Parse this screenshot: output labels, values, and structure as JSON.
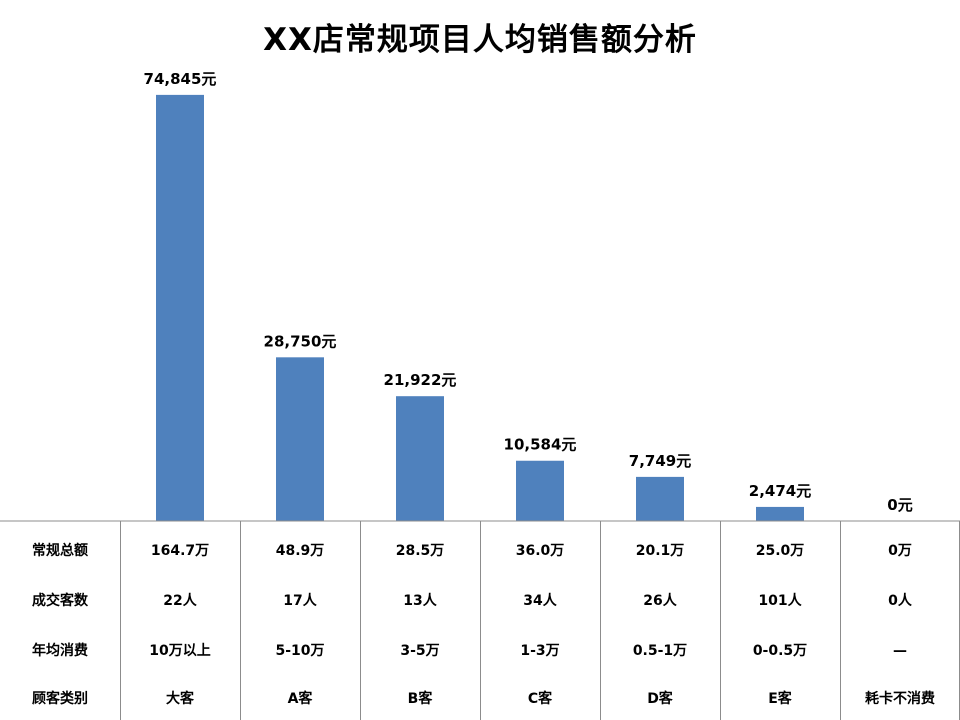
{
  "title": "XX店常规项目人均销售额分析",
  "chart_data": {
    "type": "bar",
    "title": "XX店常规项目人均销售额分析",
    "categories": [
      "大客",
      "A客",
      "B客",
      "C客",
      "D客",
      "E客",
      "耗卡不消费"
    ],
    "values": [
      74845,
      28750,
      21922,
      10584,
      7749,
      2474,
      0
    ],
    "value_labels": [
      "74,845元",
      "28,750元",
      "21,922元",
      "10,584元",
      "7,749元",
      "2,474元",
      "0元"
    ],
    "unit": "元",
    "ylim": [
      0,
      75000
    ],
    "bar_color": "#4F81BD",
    "grid": false,
    "legend": "none"
  },
  "table": {
    "row_headers": [
      "常规总额",
      "成交客数",
      "年均消费",
      "顾客类别"
    ],
    "rows": [
      [
        "164.7万",
        "48.9万",
        "28.5万",
        "36.0万",
        "20.1万",
        "25.0万",
        "0万"
      ],
      [
        "22人",
        "17人",
        "13人",
        "34人",
        "26人",
        "101人",
        "0人"
      ],
      [
        "10万以上",
        "5-10万",
        "3-5万",
        "1-3万",
        "0.5-1万",
        "0-0.5万",
        "—"
      ],
      [
        "大客",
        "A客",
        "B客",
        "C客",
        "D客",
        "E客",
        "耗卡不消费"
      ]
    ]
  }
}
